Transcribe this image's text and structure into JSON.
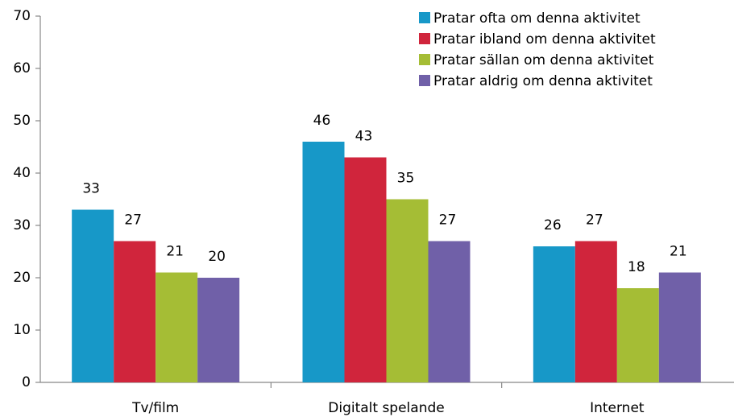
{
  "chart_data": {
    "type": "bar",
    "categories": [
      "Tv/film",
      "Digitalt spelande",
      "Internet"
    ],
    "series": [
      {
        "name": "Pratar ofta om denna aktivitet",
        "color": "#1798c8",
        "values": [
          33,
          46,
          26
        ]
      },
      {
        "name": "Pratar ibland om denna aktivitet",
        "color": "#d0253c",
        "values": [
          27,
          43,
          27
        ]
      },
      {
        "name": "Pratar sällan om denna aktivitet",
        "color": "#a5bd35",
        "values": [
          21,
          35,
          18
        ]
      },
      {
        "name": "Pratar aldrig om denna aktivitet",
        "color": "#7060a8",
        "values": [
          20,
          27,
          21
        ]
      }
    ],
    "ylim": [
      0,
      70
    ],
    "yticks": [
      0,
      10,
      20,
      30,
      40,
      50,
      60,
      70
    ],
    "grid": false,
    "legend": "upper right"
  }
}
